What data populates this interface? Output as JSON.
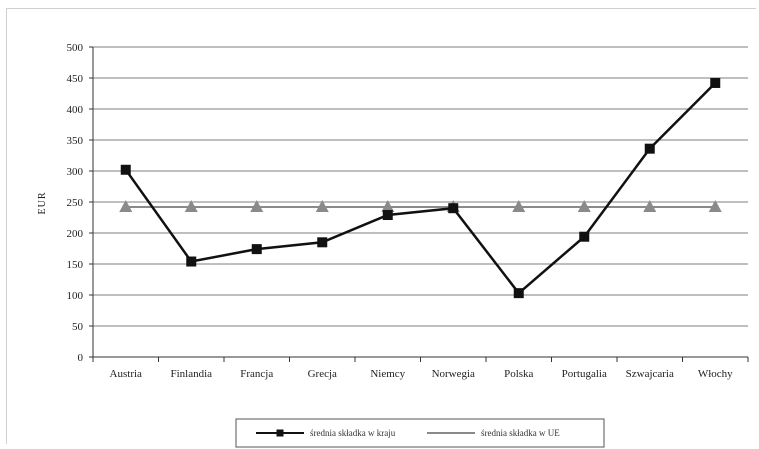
{
  "chart_data": {
    "type": "line",
    "title": "",
    "xlabel": "",
    "ylabel": "EUR",
    "ylim": [
      0,
      500
    ],
    "yticks": [
      0,
      50,
      100,
      150,
      200,
      250,
      300,
      350,
      400,
      450,
      500
    ],
    "categories": [
      "Austria",
      "Finlandia",
      "Francja",
      "Grecja",
      "Niemcy",
      "Norwegia",
      "Polska",
      "Portugalia",
      "Szwajcaria",
      "Włochy"
    ],
    "series": [
      {
        "name": "średnia składka w kraju",
        "marker": "square",
        "color": "#111111",
        "values": [
          302,
          154,
          174,
          185,
          229,
          240,
          103,
          194,
          336,
          442
        ]
      },
      {
        "name": "średnia składka w UE",
        "marker": "triangle",
        "color": "#8a8a8a",
        "values": [
          242,
          242,
          242,
          242,
          242,
          242,
          242,
          242,
          242,
          242
        ]
      }
    ],
    "grid": true,
    "legend_position": "bottom"
  }
}
